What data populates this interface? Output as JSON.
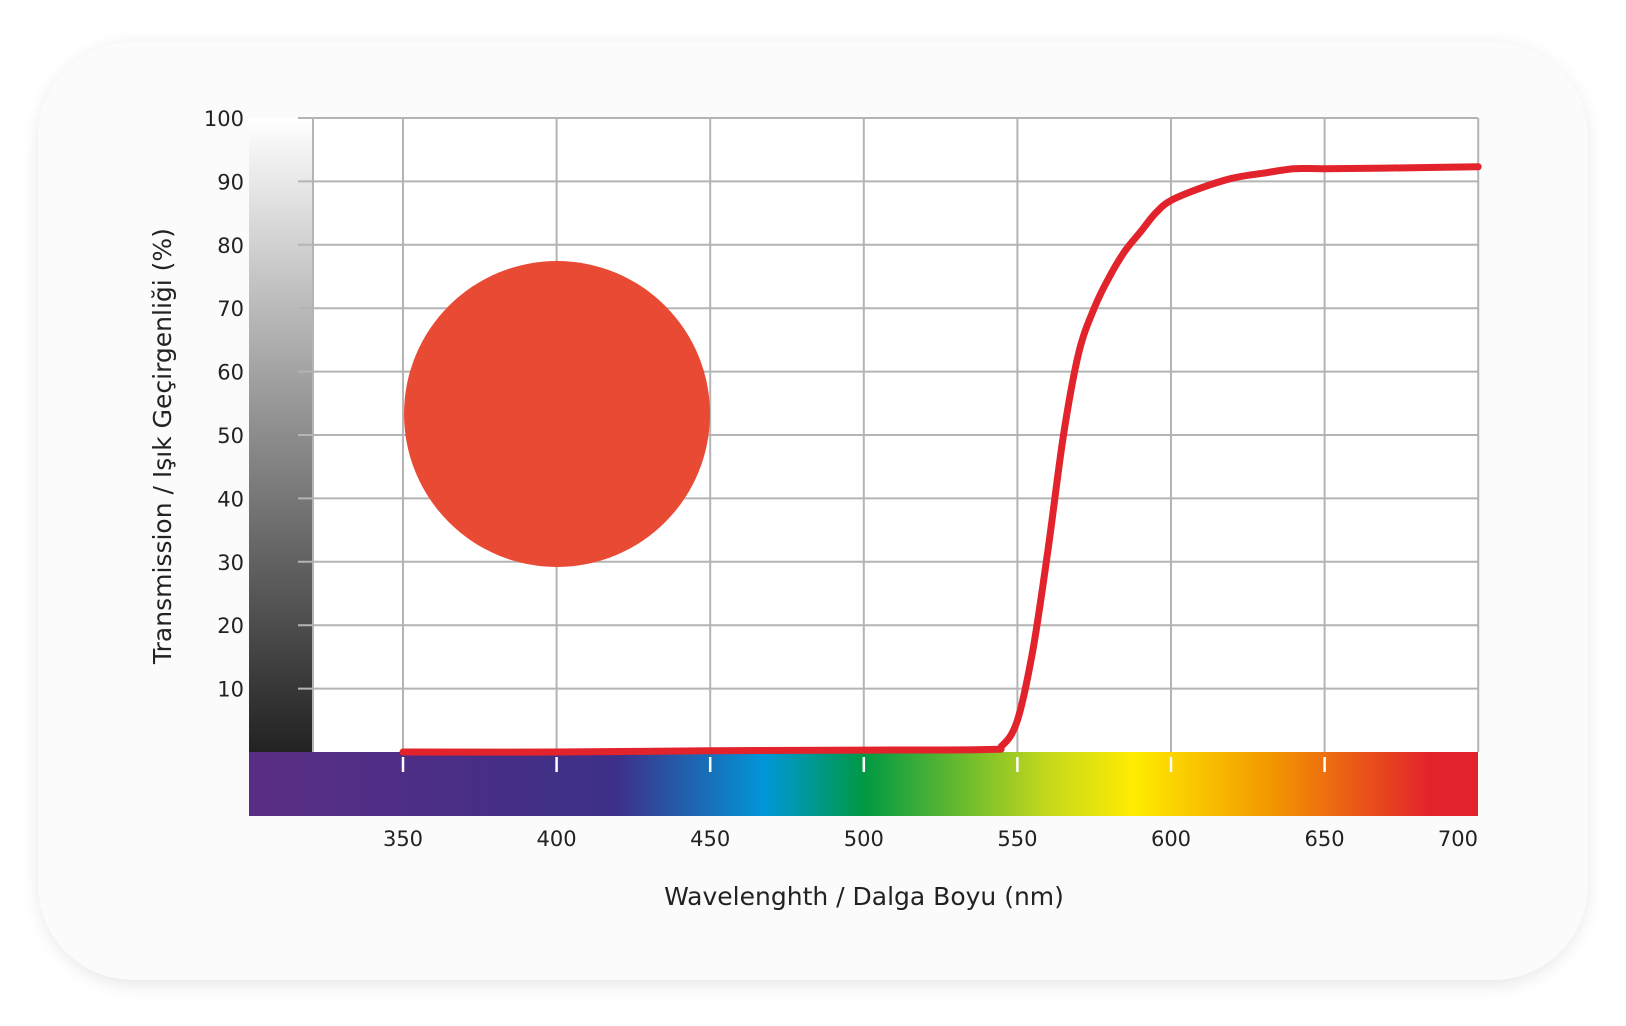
{
  "chart_data": {
    "type": "line",
    "xlabel": "Wavelenghth / Dalga Boyu (nm)",
    "ylabel": "Transmission / Işık Geçirgenliği (%)",
    "xlim": [
      350,
      700
    ],
    "ylim": [
      0,
      100
    ],
    "grid": true,
    "x_ticks": [
      "350",
      "400",
      "450",
      "500",
      "550",
      "600",
      "650",
      "700"
    ],
    "y_ticks": [
      "10",
      "20",
      "30",
      "40",
      "50",
      "60",
      "70",
      "80",
      "90",
      "100"
    ],
    "series": [
      {
        "color": "#e3232b",
        "x": [
          350,
          400,
          450,
          500,
          540,
          545,
          550,
          555,
          560,
          565,
          570,
          575,
          580,
          585,
          590,
          595,
          600,
          610,
          620,
          630,
          640,
          650,
          670,
          700
        ],
        "y": [
          0,
          0,
          0.2,
          0.3,
          0.4,
          1,
          5,
          16,
          32,
          50,
          63,
          70,
          75,
          79,
          82,
          85,
          87,
          89,
          90.5,
          91.3,
          92,
          92,
          92.1,
          92.3
        ]
      }
    ],
    "swatch_color": "#e84a34",
    "spectrum_colors": [
      "#5a2d84",
      "#3d3088",
      "#0097d8",
      "#009944",
      "#c5d81c",
      "#ffec00",
      "#f39800",
      "#e3232b"
    ]
  }
}
